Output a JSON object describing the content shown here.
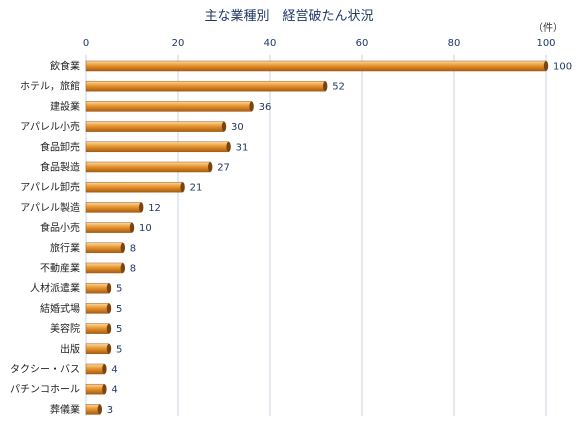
{
  "chart_data": {
    "type": "bar",
    "orientation": "horizontal",
    "title": "主な業種別　経営破たん状況",
    "unit_label": "（件）",
    "xlim": [
      0,
      100
    ],
    "xticks": [
      0,
      20,
      40,
      60,
      80,
      100
    ],
    "grid": "vertical",
    "bar_color": "#e8962e",
    "categories": [
      "飲食業",
      "ホテル，旅館",
      "建設業",
      "アパレル小売",
      "食品卸売",
      "食品製造",
      "アパレル卸売",
      "アパレル製造",
      "食品小売",
      "旅行業",
      "不動産業",
      "人材派遣業",
      "結婚式場",
      "美容院",
      "出版",
      "タクシー・バス",
      "パチンコホール",
      "葬儀業"
    ],
    "values": [
      100,
      52,
      36,
      30,
      31,
      27,
      21,
      12,
      10,
      8,
      8,
      5,
      5,
      5,
      5,
      4,
      4,
      3
    ]
  }
}
